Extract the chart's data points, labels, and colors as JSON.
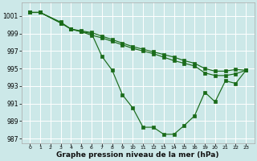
{
  "xlabel": "Graphe pression niveau de la mer (hPa)",
  "bg_color": "#cce8e8",
  "grid_color": "#ffffff",
  "line_color": "#1a6b1a",
  "ylim": [
    986.5,
    1002.5
  ],
  "yticks": [
    987,
    989,
    991,
    993,
    995,
    997,
    999,
    1001
  ],
  "xlabels": [
    "0",
    "1",
    "2",
    "3",
    "4",
    "5",
    "6",
    "7",
    "8",
    "9",
    "10",
    "11",
    "12",
    "13",
    "14",
    "15",
    "16",
    "19",
    "20",
    "21",
    "22",
    "23"
  ],
  "series1_x": [
    0,
    1,
    3,
    4,
    5,
    6,
    7,
    8,
    9,
    10,
    11,
    12,
    13,
    14,
    15,
    16,
    17,
    18,
    19,
    20,
    21
  ],
  "series1_y": [
    1001.4,
    1001.4,
    1000.2,
    999.5,
    999.2,
    998.8,
    998.5,
    998.1,
    997.7,
    997.3,
    997.0,
    996.7,
    996.3,
    995.9,
    995.6,
    995.3,
    994.5,
    994.2,
    994.2,
    994.4,
    994.8
  ],
  "series2_x": [
    0,
    1,
    3,
    4,
    5,
    6,
    7,
    8,
    9,
    10,
    11,
    12,
    13,
    14,
    15,
    16,
    17,
    18,
    19,
    20,
    21
  ],
  "series2_y": [
    1001.4,
    1001.4,
    1000.2,
    999.5,
    999.2,
    999.0,
    996.4,
    994.8,
    992.0,
    990.5,
    988.3,
    988.3,
    987.5,
    987.5,
    988.5,
    989.6,
    992.3,
    991.2,
    993.6,
    993.3,
    994.8
  ],
  "series3_x": [
    0,
    1,
    3,
    4,
    5,
    6,
    7,
    8,
    9,
    10,
    11,
    12,
    13,
    14,
    15,
    16,
    17,
    18,
    19,
    20,
    21
  ],
  "series3_y": [
    1001.4,
    1001.4,
    1000.3,
    999.5,
    999.3,
    999.1,
    998.7,
    998.3,
    997.9,
    997.5,
    997.2,
    996.9,
    996.6,
    996.3,
    995.9,
    995.6,
    995.0,
    994.7,
    994.7,
    994.9,
    994.8
  ]
}
